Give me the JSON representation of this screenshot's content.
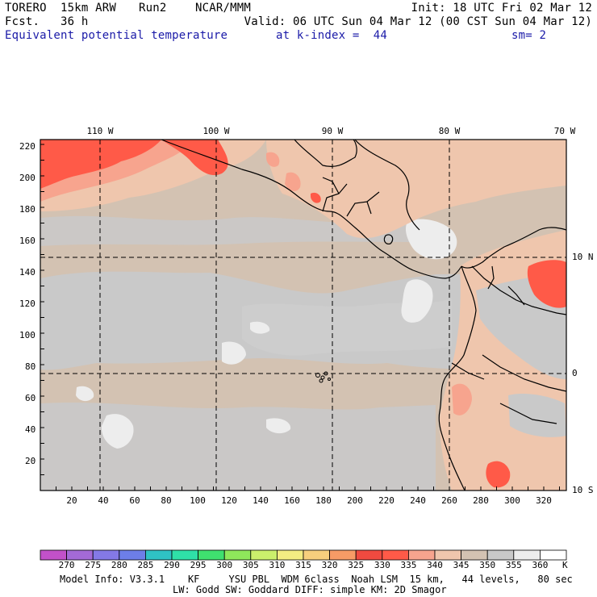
{
  "header": {
    "model": "TORERO",
    "resolution": "15km ARW",
    "run": "Run2",
    "center": "NCAR/MMM",
    "init": "Init: 18 UTC Fri 02 Mar 12",
    "fcst_label": "Fcst.",
    "fcst_value": "36 h",
    "valid": "Valid: 06 UTC Sun 04 Mar 12 (00 CST Sun 04 Mar 12)",
    "field": "Equivalent potential temperature",
    "level": "at k-index =  44",
    "smoothing": "sm= 2"
  },
  "map": {
    "top_lon_labels": [
      "110 W",
      "100 W",
      "90 W",
      "80 W",
      "70 W"
    ],
    "right_lat_labels": [
      "10 N",
      "0",
      "10 S"
    ],
    "y_grid_labels": [
      "220",
      "200",
      "180",
      "160",
      "140",
      "120",
      "100",
      "80",
      "60",
      "40",
      "20"
    ],
    "x_grid_labels": [
      "20",
      "40",
      "60",
      "80",
      "100",
      "120",
      "140",
      "160",
      "180",
      "200",
      "220",
      "240",
      "260",
      "280",
      "300",
      "320"
    ],
    "land_color": "#c9c9c9"
  },
  "colorbar": {
    "unit": "K",
    "levels": [
      "270",
      "275",
      "280",
      "285",
      "290",
      "295",
      "300",
      "305",
      "310",
      "315",
      "320",
      "325",
      "330",
      "335",
      "340",
      "345",
      "350",
      "355",
      "360"
    ],
    "colors": [
      "#c251c9",
      "#a46ad6",
      "#8479e6",
      "#6d7ee8",
      "#2fc2c4",
      "#2fe0a8",
      "#3fe06f",
      "#8fe85b",
      "#cbef6c",
      "#f3ec82",
      "#f7cf7d",
      "#f79b66",
      "#ef4a40",
      "#ff5a48",
      "#f7a48e",
      "#efc6ad",
      "#d3c2b2",
      "#c9c9c9",
      "#ededed",
      "#ffffff"
    ]
  },
  "footer": {
    "line1": "Model Info: V3.3.1    KF     YSU PBL  WDM 6class  Noah LSM  15 km,   44 levels,   80 sec",
    "line2": "LW: Godd SW: Goddard DIFF: simple KM: 2D Smagor"
  }
}
